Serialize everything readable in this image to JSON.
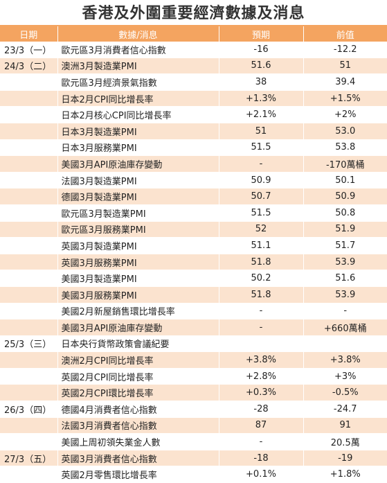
{
  "title": "香港及外圍重要經濟數據及消息",
  "headers": {
    "date": "日期",
    "item": "數據/消息",
    "expected": "預期",
    "previous": "前值"
  },
  "rows": [
    {
      "date": "23/3（一）",
      "item": "歐元區3月消費者信心指數",
      "expected": "-16",
      "previous": "-12.2"
    },
    {
      "date": "24/3（二）",
      "item": "澳洲3月製造業PMI",
      "expected": "51.6",
      "previous": "51"
    },
    {
      "date": "",
      "item": "歐元區3月經濟景氣指數",
      "expected": "38",
      "previous": "39.4"
    },
    {
      "date": "",
      "item": "日本2月CPI同比增長率",
      "expected": "+1.3%",
      "previous": "+1.5%"
    },
    {
      "date": "",
      "item": "日本2月核心CPI同比增長率",
      "expected": "+2.1%",
      "previous": "+2%"
    },
    {
      "date": "",
      "item": "日本3月製造業PMI",
      "expected": "51",
      "previous": "53.0"
    },
    {
      "date": "",
      "item": "日本3月服務業PMI",
      "expected": "51.5",
      "previous": "53.8"
    },
    {
      "date": "",
      "item": "美國3月API原油庫存變動",
      "expected": "-",
      "previous": "-170萬桶"
    },
    {
      "date": "",
      "item": "法國3月製造業PMI",
      "expected": "50.9",
      "previous": "50.1"
    },
    {
      "date": "",
      "item": "德國3月製造業PMI",
      "expected": "50.7",
      "previous": "50.9"
    },
    {
      "date": "",
      "item": "歐元區3月製造業PMI",
      "expected": "51.5",
      "previous": "50.8"
    },
    {
      "date": "",
      "item": "歐元區3月服務業PMI",
      "expected": "52",
      "previous": "51.9"
    },
    {
      "date": "",
      "item": "英國3月製造業PMI",
      "expected": "51.1",
      "previous": "51.7"
    },
    {
      "date": "",
      "item": "英國3月服務業PMI",
      "expected": "51.8",
      "previous": "53.9"
    },
    {
      "date": "",
      "item": "美國3月製造業PMI",
      "expected": "50.2",
      "previous": "51.6"
    },
    {
      "date": "",
      "item": "美國3月服務業PMI",
      "expected": "51.8",
      "previous": "53.9"
    },
    {
      "date": "",
      "item": "美國2月新屋銷售環比增長率",
      "expected": "-",
      "previous": "-"
    },
    {
      "date": "",
      "item": "美國3月API原油庫存變動",
      "expected": "-",
      "previous": "+660萬桶"
    },
    {
      "date": "25/3（三）",
      "item": "日本央行貨幣政策會議紀要",
      "expected": "",
      "previous": ""
    },
    {
      "date": "",
      "item": "澳洲2月CPI同比增長率",
      "expected": "+3.8%",
      "previous": "+3.8%"
    },
    {
      "date": "",
      "item": "英國2月CPI同比增長率",
      "expected": "+2.8%",
      "previous": "+3%"
    },
    {
      "date": "",
      "item": "英國2月CPI環比增長率",
      "expected": "+0.3%",
      "previous": "-0.5%"
    },
    {
      "date": "26/3（四）",
      "item": "德國4月消費者信心指數",
      "expected": "-28",
      "previous": "-24.7"
    },
    {
      "date": "",
      "item": "法國3月消費者信心指數",
      "expected": "87",
      "previous": "91"
    },
    {
      "date": "",
      "item": "美國上周初領失業金人數",
      "expected": "-",
      "previous": "20.5萬"
    },
    {
      "date": "27/3（五）",
      "item": "英國3月消費者信心指數",
      "expected": "-18",
      "previous": "-19"
    },
    {
      "date": "",
      "item": "英國2月零售環比增長率",
      "expected": "+0.1%",
      "previous": "+1.8%"
    }
  ]
}
